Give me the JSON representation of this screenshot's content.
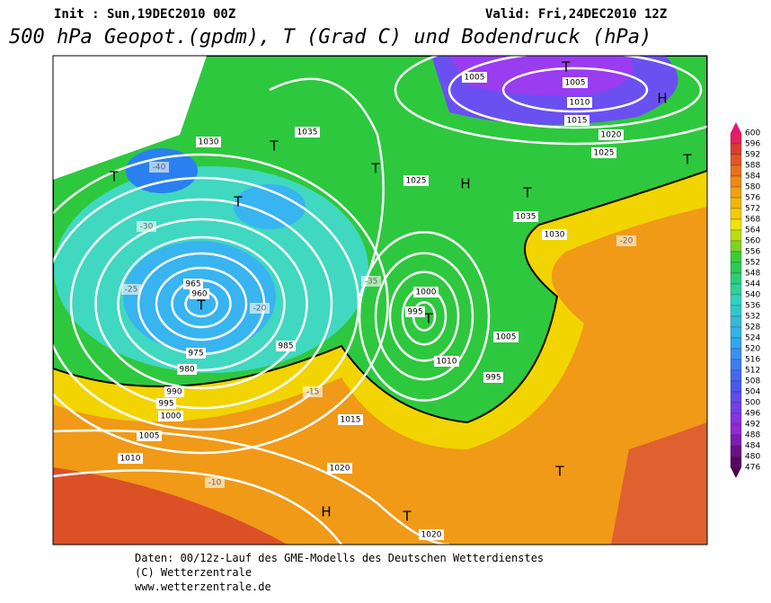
{
  "header": {
    "init": "Init : Sun,19DEC2010 00Z",
    "valid": "Valid: Fri,24DEC2010 12Z",
    "title": "500 hPa Geopot.(gpdm), T (Grad C) und Bodendruck (hPa)"
  },
  "legend": {
    "values": [
      600,
      596,
      592,
      588,
      584,
      580,
      576,
      572,
      568,
      564,
      560,
      556,
      552,
      548,
      544,
      540,
      536,
      532,
      528,
      524,
      520,
      516,
      512,
      508,
      504,
      500,
      496,
      492,
      488,
      484,
      480,
      476
    ]
  },
  "map": {
    "labels": [
      "T",
      "H",
      "H",
      "T",
      "T",
      "T",
      "T",
      "T",
      "T",
      "T",
      "T",
      "T",
      "H",
      "T",
      "960",
      "965",
      "975",
      "980",
      "985",
      "990",
      "995",
      "1000",
      "1005",
      "1010",
      "1015",
      "1020",
      "1020",
      "1025",
      "1030",
      "1035",
      "1005",
      "1005",
      "1010",
      "1015",
      "1020",
      "1025",
      "1030",
      "1035",
      "1000",
      "995",
      "1010",
      "1005",
      "995",
      "-25",
      "-20",
      "-15",
      "-10",
      "-40",
      "-30",
      "-35",
      "-20"
    ]
  },
  "footer": {
    "lines": [
      "Daten: 00/12z-Lauf des GME-Modells des Deutschen Wetterdienstes",
      "(C) Wetterzentrale",
      "www.wetterzentrale.de"
    ]
  }
}
